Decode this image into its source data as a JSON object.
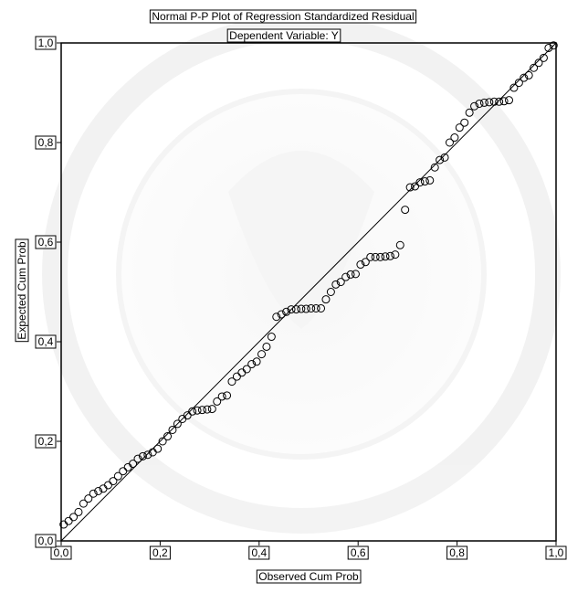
{
  "chart_data": {
    "type": "scatter",
    "title": "Normal P-P Plot of Regression Standardized Residual",
    "subtitle": "Dependent Variable: Y",
    "xlabel": "Observed Cum Prob",
    "ylabel": "Expected Cum Prob",
    "xlim": [
      0,
      1
    ],
    "ylim": [
      0,
      1
    ],
    "x_ticks": [
      "0,0",
      "0,2",
      "0,4",
      "0,6",
      "0,8",
      "1,0"
    ],
    "y_ticks": [
      "0,0",
      "0,2",
      "0,4",
      "0,6",
      "0,8",
      "1,0"
    ],
    "grid": false,
    "reference_line": [
      [
        0,
        0
      ],
      [
        1,
        1
      ]
    ],
    "marker": "open-circle",
    "colors": {
      "points": "#000000",
      "line": "#000000",
      "frame": "#000000",
      "background": "#ffffff"
    },
    "points": [
      [
        0.005,
        0.033
      ],
      [
        0.015,
        0.04
      ],
      [
        0.025,
        0.048
      ],
      [
        0.035,
        0.058
      ],
      [
        0.045,
        0.075
      ],
      [
        0.055,
        0.085
      ],
      [
        0.065,
        0.095
      ],
      [
        0.075,
        0.1
      ],
      [
        0.085,
        0.105
      ],
      [
        0.095,
        0.112
      ],
      [
        0.105,
        0.12
      ],
      [
        0.115,
        0.13
      ],
      [
        0.125,
        0.14
      ],
      [
        0.135,
        0.148
      ],
      [
        0.145,
        0.155
      ],
      [
        0.155,
        0.165
      ],
      [
        0.165,
        0.17
      ],
      [
        0.175,
        0.173
      ],
      [
        0.185,
        0.178
      ],
      [
        0.195,
        0.185
      ],
      [
        0.205,
        0.2
      ],
      [
        0.215,
        0.21
      ],
      [
        0.225,
        0.223
      ],
      [
        0.235,
        0.235
      ],
      [
        0.245,
        0.245
      ],
      [
        0.255,
        0.252
      ],
      [
        0.265,
        0.26
      ],
      [
        0.275,
        0.262
      ],
      [
        0.285,
        0.263
      ],
      [
        0.295,
        0.264
      ],
      [
        0.305,
        0.265
      ],
      [
        0.315,
        0.28
      ],
      [
        0.325,
        0.29
      ],
      [
        0.335,
        0.292
      ],
      [
        0.345,
        0.32
      ],
      [
        0.355,
        0.33
      ],
      [
        0.365,
        0.338
      ],
      [
        0.375,
        0.345
      ],
      [
        0.385,
        0.355
      ],
      [
        0.395,
        0.36
      ],
      [
        0.405,
        0.375
      ],
      [
        0.415,
        0.39
      ],
      [
        0.425,
        0.41
      ],
      [
        0.435,
        0.45
      ],
      [
        0.445,
        0.455
      ],
      [
        0.455,
        0.46
      ],
      [
        0.465,
        0.465
      ],
      [
        0.475,
        0.465
      ],
      [
        0.485,
        0.466
      ],
      [
        0.495,
        0.466
      ],
      [
        0.505,
        0.467
      ],
      [
        0.515,
        0.467
      ],
      [
        0.525,
        0.467
      ],
      [
        0.535,
        0.485
      ],
      [
        0.545,
        0.5
      ],
      [
        0.555,
        0.515
      ],
      [
        0.565,
        0.52
      ],
      [
        0.575,
        0.53
      ],
      [
        0.585,
        0.535
      ],
      [
        0.595,
        0.536
      ],
      [
        0.605,
        0.555
      ],
      [
        0.615,
        0.56
      ],
      [
        0.625,
        0.57
      ],
      [
        0.635,
        0.57
      ],
      [
        0.645,
        0.57
      ],
      [
        0.655,
        0.571
      ],
      [
        0.665,
        0.572
      ],
      [
        0.675,
        0.575
      ],
      [
        0.685,
        0.594
      ],
      [
        0.695,
        0.665
      ],
      [
        0.705,
        0.71
      ],
      [
        0.715,
        0.712
      ],
      [
        0.725,
        0.72
      ],
      [
        0.735,
        0.722
      ],
      [
        0.745,
        0.724
      ],
      [
        0.755,
        0.75
      ],
      [
        0.765,
        0.765
      ],
      [
        0.775,
        0.77
      ],
      [
        0.785,
        0.8
      ],
      [
        0.795,
        0.81
      ],
      [
        0.805,
        0.83
      ],
      [
        0.815,
        0.84
      ],
      [
        0.825,
        0.86
      ],
      [
        0.835,
        0.873
      ],
      [
        0.845,
        0.878
      ],
      [
        0.855,
        0.88
      ],
      [
        0.865,
        0.881
      ],
      [
        0.875,
        0.882
      ],
      [
        0.885,
        0.882
      ],
      [
        0.895,
        0.883
      ],
      [
        0.905,
        0.885
      ],
      [
        0.915,
        0.91
      ],
      [
        0.925,
        0.92
      ],
      [
        0.935,
        0.93
      ],
      [
        0.945,
        0.935
      ],
      [
        0.955,
        0.95
      ],
      [
        0.965,
        0.96
      ],
      [
        0.975,
        0.97
      ],
      [
        0.985,
        0.99
      ],
      [
        0.995,
        0.995
      ]
    ]
  }
}
